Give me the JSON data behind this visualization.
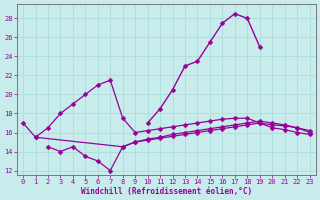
{
  "xlabel": "Windchill (Refroidissement éolien,°C)",
  "background_color": "#c8ecec",
  "grid_color": "#b0dede",
  "line_color": "#990099",
  "x_values": [
    0,
    1,
    2,
    3,
    4,
    5,
    6,
    7,
    8,
    9,
    10,
    11,
    12,
    13,
    14,
    15,
    16,
    17,
    18,
    19,
    20,
    21,
    22,
    23
  ],
  "series_upper": [
    null,
    null,
    null,
    null,
    null,
    null,
    null,
    null,
    null,
    null,
    17.0,
    18.5,
    20.5,
    23.0,
    23.5,
    25.5,
    27.5,
    28.5,
    28.0,
    25.0,
    null,
    null,
    null,
    null
  ],
  "series_a": [
    17.0,
    15.5,
    16.5,
    18.0,
    19.0,
    20.0,
    21.0,
    21.5,
    17.5,
    16.0,
    16.2,
    16.4,
    16.6,
    16.8,
    17.0,
    17.2,
    17.4,
    17.5,
    17.5,
    17.0,
    16.8,
    16.7,
    16.5,
    16.0
  ],
  "series_b": [
    null,
    15.5,
    null,
    null,
    null,
    null,
    null,
    null,
    14.5,
    15.0,
    15.3,
    15.5,
    15.8,
    16.0,
    16.2,
    16.4,
    16.6,
    16.8,
    17.0,
    17.2,
    17.0,
    16.8,
    16.5,
    16.2
  ],
  "series_c": [
    null,
    null,
    14.5,
    14.0,
    14.5,
    13.5,
    13.0,
    12.0,
    14.5,
    15.0,
    15.2,
    15.4,
    15.6,
    15.8,
    16.0,
    16.2,
    16.4,
    16.6,
    16.8,
    17.0,
    16.5,
    16.3,
    16.0,
    15.8
  ],
  "ylim": [
    11.5,
    29.5
  ],
  "yticks": [
    12,
    14,
    16,
    18,
    20,
    22,
    24,
    26,
    28
  ],
  "xlim": [
    -0.5,
    23.5
  ],
  "xticks": [
    0,
    1,
    2,
    3,
    4,
    5,
    6,
    7,
    8,
    9,
    10,
    11,
    12,
    13,
    14,
    15,
    16,
    17,
    18,
    19,
    20,
    21,
    22,
    23
  ]
}
